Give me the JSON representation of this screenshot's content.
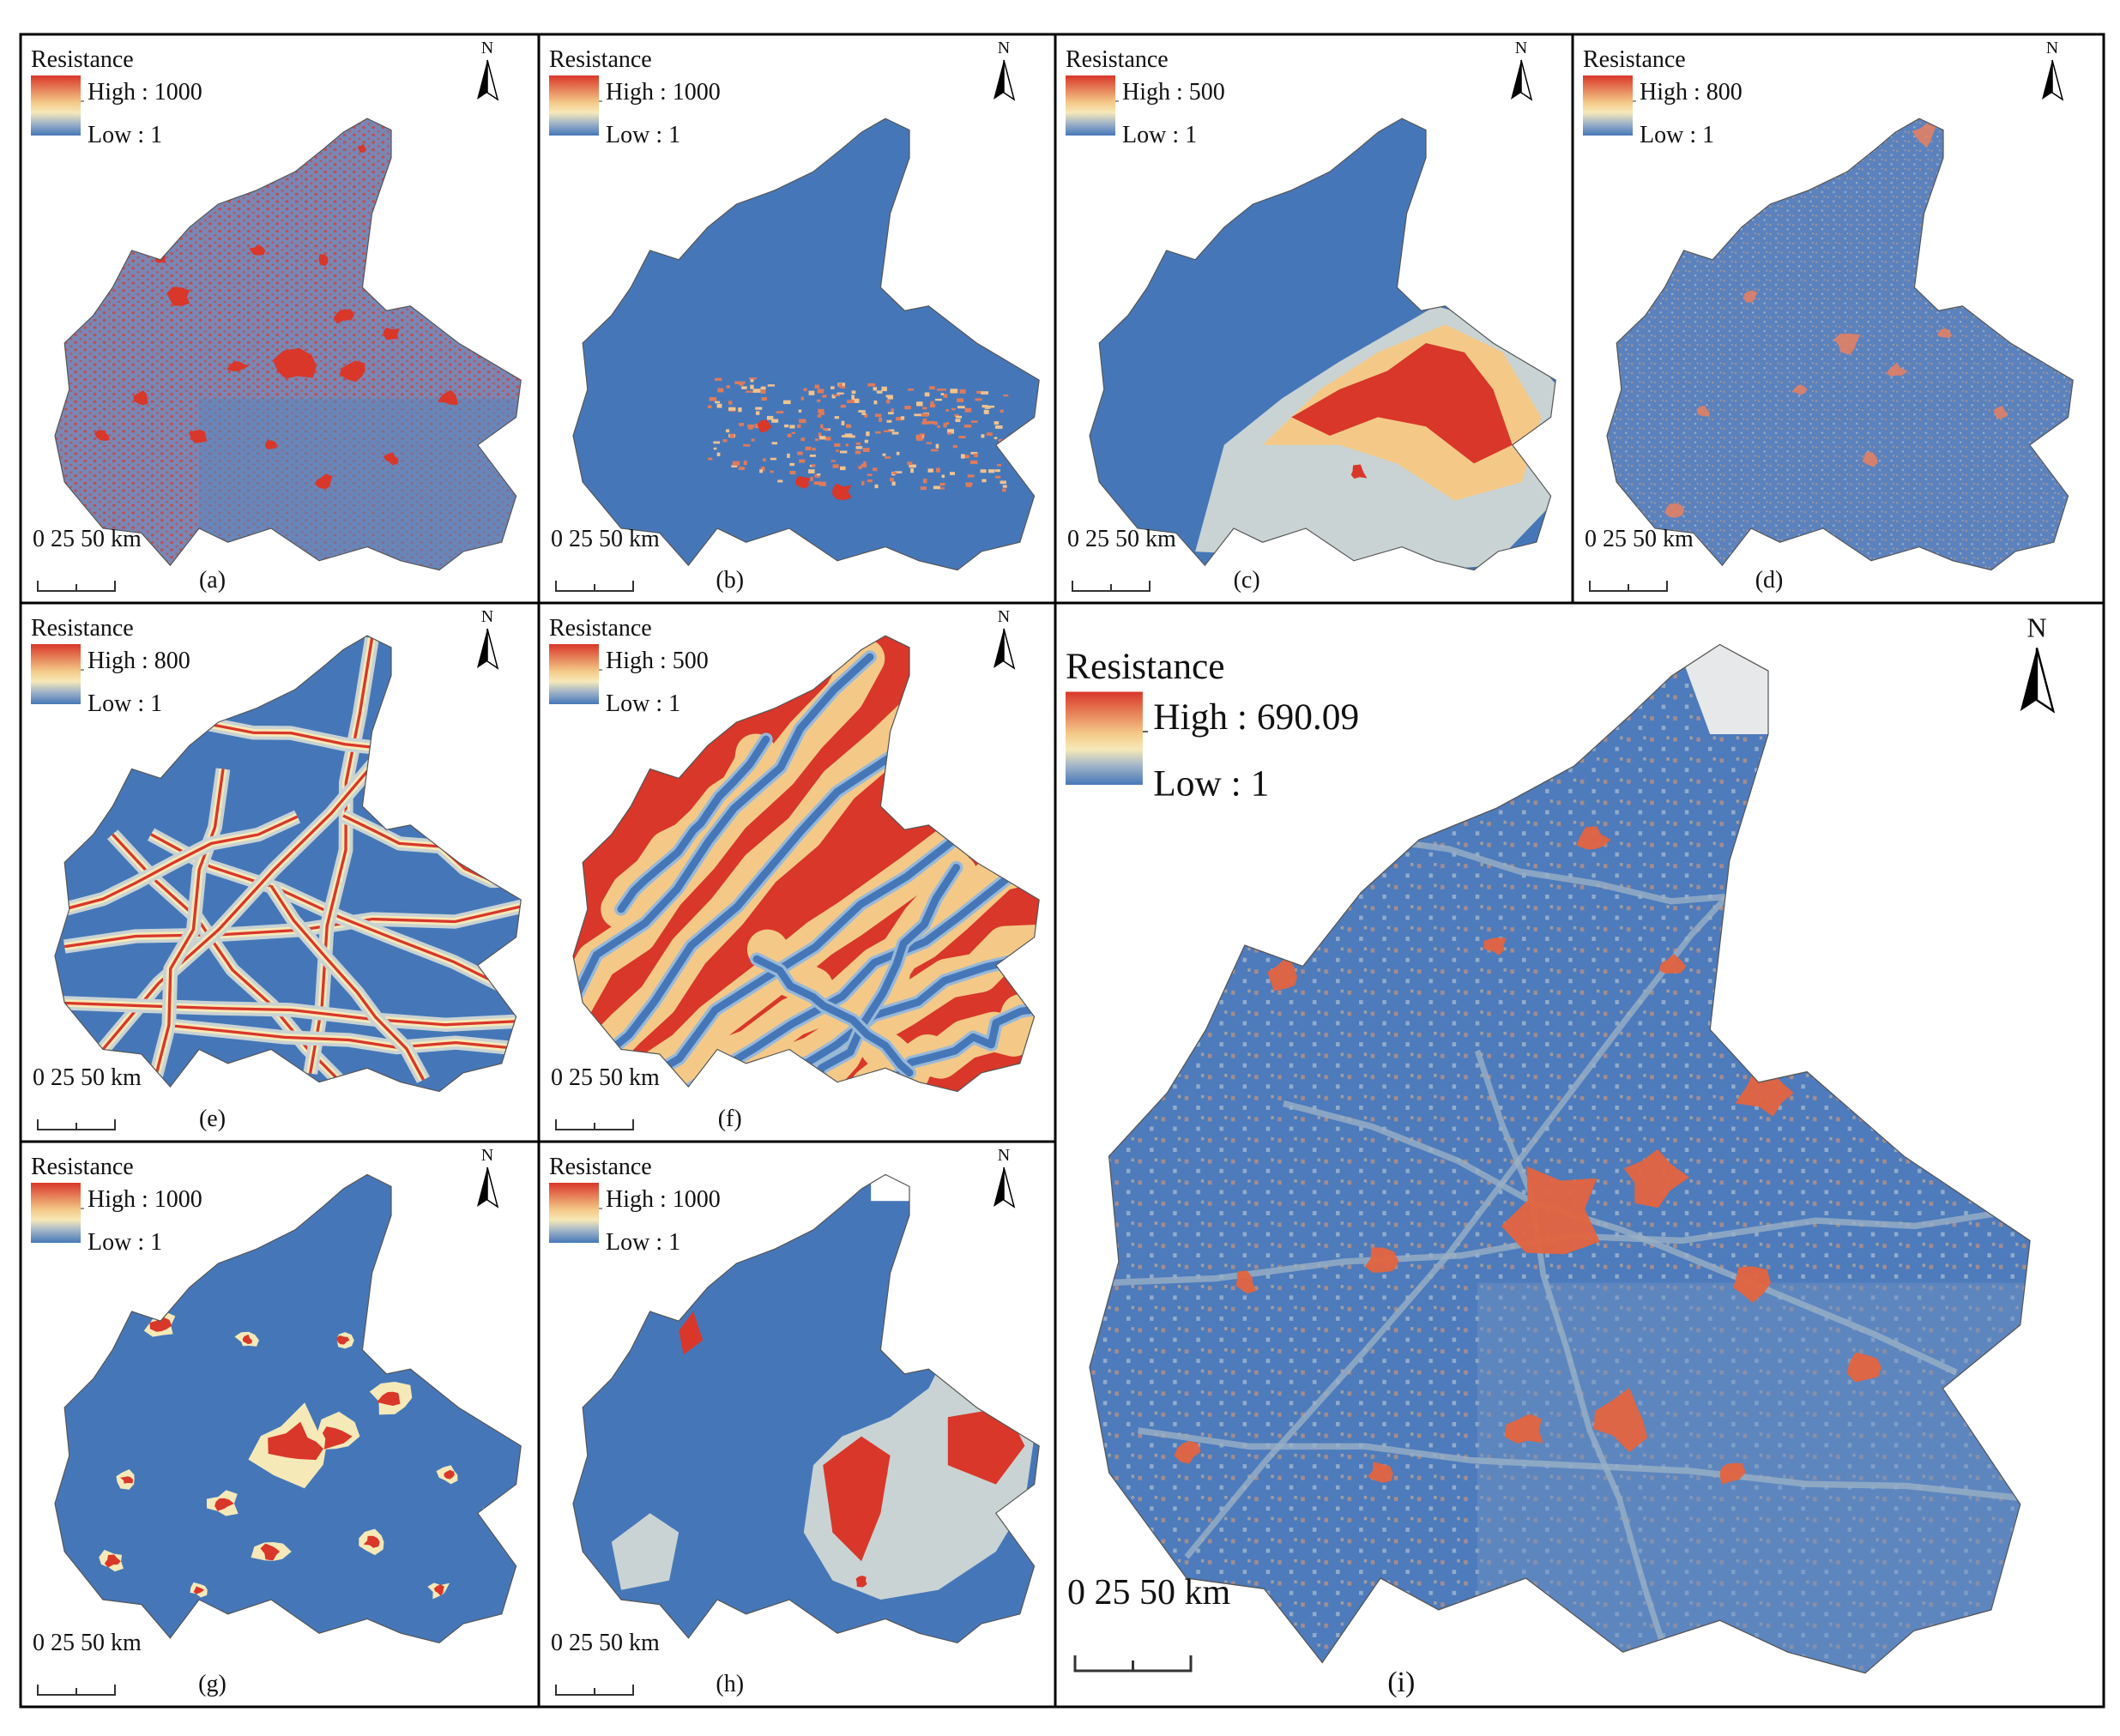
{
  "legend_title": "Resistance",
  "colors": {
    "high": "#d8372a",
    "mid_warm": "#f4c987",
    "mid_pale": "#f6e9b8",
    "mid_grey": "#c9d3d3",
    "low": "#4577b8",
    "panel_border": "#000000",
    "outline": "#555555"
  },
  "north_label": "N",
  "scale_label": "0  25 50 km",
  "panels": [
    {
      "id": "a",
      "caption": "(a)",
      "high_label": "High : 1000",
      "low_label": "Low : 1",
      "pattern": "speckle"
    },
    {
      "id": "b",
      "caption": "(b)",
      "high_label": "High : 1000",
      "low_label": "Low : 1",
      "pattern": "south-band"
    },
    {
      "id": "c",
      "caption": "(c)",
      "high_label": "High : 500",
      "low_label": "Low : 1",
      "pattern": "south-relief"
    },
    {
      "id": "d",
      "caption": "(d)",
      "high_label": "High : 800",
      "low_label": "Low : 1",
      "pattern": "mixed"
    },
    {
      "id": "e",
      "caption": "(e)",
      "high_label": "High : 800",
      "low_label": "Low : 1",
      "pattern": "roads"
    },
    {
      "id": "f",
      "caption": "(f)",
      "high_label": "High : 500",
      "low_label": "Low : 1",
      "pattern": "rivers"
    },
    {
      "id": "g",
      "caption": "(g)",
      "high_label": "High : 1000",
      "low_label": "Low : 1",
      "pattern": "settlements"
    },
    {
      "id": "h",
      "caption": "(h)",
      "high_label": "High : 1000",
      "low_label": "Low : 1",
      "pattern": "blocks"
    },
    {
      "id": "i",
      "caption": "(i)",
      "high_label": "High : 690.09",
      "low_label": "Low : 1",
      "pattern": "composite"
    }
  ]
}
